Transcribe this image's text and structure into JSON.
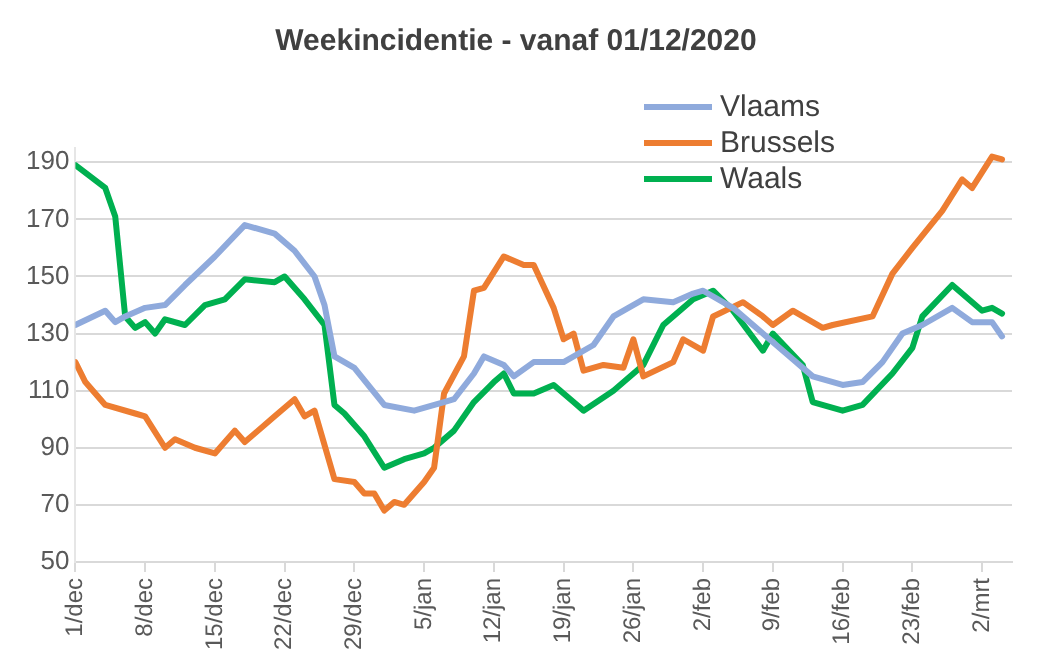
{
  "chart_data": {
    "type": "line",
    "title": "Weekincidentie - vanaf 01/12/2020",
    "xlim": [
      "2020-12-01",
      "2021-03-05"
    ],
    "xticks": [
      {
        "value": "2020-12-01",
        "label": "1/dec"
      },
      {
        "value": "2020-12-08",
        "label": "8/dec"
      },
      {
        "value": "2020-12-15",
        "label": "15/dec"
      },
      {
        "value": "2020-12-22",
        "label": "22/dec"
      },
      {
        "value": "2020-12-29",
        "label": "29/dec"
      },
      {
        "value": "2021-01-05",
        "label": "5/jan"
      },
      {
        "value": "2021-01-12",
        "label": "12/jan"
      },
      {
        "value": "2021-01-19",
        "label": "19/jan"
      },
      {
        "value": "2021-01-26",
        "label": "26/jan"
      },
      {
        "value": "2021-02-02",
        "label": "2/feb"
      },
      {
        "value": "2021-02-09",
        "label": "9/feb"
      },
      {
        "value": "2021-02-16",
        "label": "16/feb"
      },
      {
        "value": "2021-02-23",
        "label": "23/feb"
      },
      {
        "value": "2021-03-02",
        "label": "2/mrt"
      }
    ],
    "ylim": [
      50,
      195
    ],
    "yticks": [
      50,
      70,
      90,
      110,
      130,
      150,
      170,
      190
    ],
    "grid": "y",
    "legend": "top right",
    "marker": "none",
    "line_style": "solid",
    "series": [
      {
        "name": "Vlaams",
        "color": "#8faadc",
        "x": [
          "2020-12-01",
          "2020-12-04",
          "2020-12-05",
          "2020-12-06",
          "2020-12-08",
          "2020-12-10",
          "2020-12-12",
          "2020-12-15",
          "2020-12-18",
          "2020-12-21",
          "2020-12-23",
          "2020-12-25",
          "2020-12-26",
          "2020-12-27",
          "2020-12-29",
          "2021-01-01",
          "2021-01-04",
          "2021-01-07",
          "2021-01-08",
          "2021-01-10",
          "2021-01-11",
          "2021-01-13",
          "2021-01-14",
          "2021-01-16",
          "2021-01-19",
          "2021-01-22",
          "2021-01-24",
          "2021-01-27",
          "2021-01-30",
          "2021-02-01",
          "2021-02-02",
          "2021-02-05",
          "2021-02-08",
          "2021-02-11",
          "2021-02-13",
          "2021-02-16",
          "2021-02-18",
          "2021-02-20",
          "2021-02-22",
          "2021-02-24",
          "2021-02-27",
          "2021-03-01",
          "2021-03-03",
          "2021-03-04"
        ],
        "values": [
          133,
          138,
          134,
          136,
          139,
          140,
          147,
          157,
          168,
          165,
          159,
          150,
          140,
          122,
          118,
          105,
          103,
          106,
          107,
          116,
          122,
          119,
          115,
          120,
          120,
          126,
          136,
          142,
          141,
          144,
          145,
          139,
          130,
          121,
          115,
          112,
          113,
          120,
          130,
          133,
          139,
          134,
          134,
          129
        ]
      },
      {
        "name": "Brussels",
        "color": "#ed7d31",
        "x": [
          "2020-12-01",
          "2020-12-02",
          "2020-12-04",
          "2020-12-07",
          "2020-12-08",
          "2020-12-10",
          "2020-12-11",
          "2020-12-13",
          "2020-12-15",
          "2020-12-17",
          "2020-12-18",
          "2020-12-21",
          "2020-12-23",
          "2020-12-24",
          "2020-12-25",
          "2020-12-27",
          "2020-12-29",
          "2020-12-30",
          "2020-12-31",
          "2021-01-01",
          "2021-01-02",
          "2021-01-03",
          "2021-01-05",
          "2021-01-06",
          "2021-01-07",
          "2021-01-09",
          "2021-01-10",
          "2021-01-11",
          "2021-01-13",
          "2021-01-15",
          "2021-01-16",
          "2021-01-18",
          "2021-01-19",
          "2021-01-20",
          "2021-01-21",
          "2021-01-23",
          "2021-01-25",
          "2021-01-26",
          "2021-01-27",
          "2021-01-30",
          "2021-01-31",
          "2021-02-02",
          "2021-02-03",
          "2021-02-06",
          "2021-02-08",
          "2021-02-09",
          "2021-02-11",
          "2021-02-13",
          "2021-02-14",
          "2021-02-15",
          "2021-02-19",
          "2021-02-21",
          "2021-02-23",
          "2021-02-26",
          "2021-02-28",
          "2021-03-01",
          "2021-03-03",
          "2021-03-04"
        ],
        "values": [
          120,
          113,
          105,
          102,
          101,
          90,
          93,
          90,
          88,
          96,
          92,
          101,
          107,
          101,
          103,
          79,
          78,
          74,
          74,
          68,
          71,
          70,
          78,
          83,
          109,
          122,
          145,
          146,
          157,
          154,
          154,
          139,
          128,
          130,
          117,
          119,
          118,
          128,
          115,
          120,
          128,
          124,
          136,
          141,
          136,
          133,
          138,
          134,
          132,
          133,
          136,
          151,
          160,
          173,
          184,
          181,
          192,
          191
        ]
      },
      {
        "name": "Waals",
        "color": "#00b050",
        "x": [
          "2020-12-01",
          "2020-12-04",
          "2020-12-05",
          "2020-12-06",
          "2020-12-07",
          "2020-12-08",
          "2020-12-09",
          "2020-12-10",
          "2020-12-12",
          "2020-12-14",
          "2020-12-16",
          "2020-12-18",
          "2020-12-21",
          "2020-12-22",
          "2020-12-24",
          "2020-12-26",
          "2020-12-27",
          "2020-12-28",
          "2020-12-30",
          "2021-01-01",
          "2021-01-03",
          "2021-01-05",
          "2021-01-06",
          "2021-01-08",
          "2021-01-10",
          "2021-01-12",
          "2021-01-13",
          "2021-01-14",
          "2021-01-16",
          "2021-01-18",
          "2021-01-20",
          "2021-01-21",
          "2021-01-24",
          "2021-01-27",
          "2021-01-29",
          "2021-02-01",
          "2021-02-03",
          "2021-02-05",
          "2021-02-08",
          "2021-02-09",
          "2021-02-12",
          "2021-02-13",
          "2021-02-16",
          "2021-02-18",
          "2021-02-21",
          "2021-02-23",
          "2021-02-24",
          "2021-02-27",
          "2021-03-02",
          "2021-03-03",
          "2021-03-04"
        ],
        "values": [
          189,
          181,
          171,
          136,
          132,
          134,
          130,
          135,
          133,
          140,
          142,
          149,
          148,
          150,
          142,
          133,
          105,
          102,
          94,
          83,
          86,
          88,
          90,
          96,
          106,
          113,
          116,
          109,
          109,
          112,
          106,
          103,
          110,
          119,
          133,
          142,
          145,
          138,
          124,
          130,
          119,
          106,
          103,
          105,
          116,
          125,
          136,
          147,
          138,
          139,
          137
        ]
      }
    ]
  }
}
